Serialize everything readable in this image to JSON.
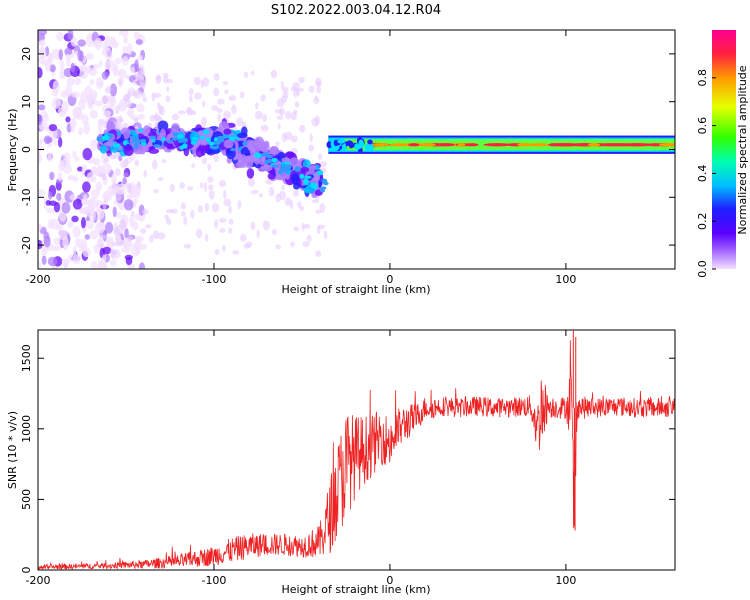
{
  "figure": {
    "title": "S102.2022.003.04.12.R04"
  },
  "chart_data": [
    {
      "type": "heatmap",
      "title": "",
      "xlabel": "Height of straight line (km)",
      "ylabel": "Frequency (Hz)",
      "xlim": [
        -200,
        162
      ],
      "ylim": [
        -25,
        25
      ],
      "x_ticks": [
        "-200",
        "-100",
        "0",
        "100"
      ],
      "y_ticks": [
        "-20",
        "-10",
        "0",
        "10",
        "20"
      ],
      "colorbar": {
        "label": "Normalized spectral amplitude",
        "range": [
          0,
          1
        ],
        "ticks": [
          "0.0",
          "0.2",
          "0.4",
          "0.6",
          "0.8"
        ],
        "colors": [
          "#f3e0ff",
          "#7a00ff",
          "#1e1eff",
          "#00bfff",
          "#00ff9a",
          "#5cff00",
          "#f2ff00",
          "#ff9900",
          "#ff2040",
          "#ff00a0"
        ]
      },
      "description_bands": [
        {
          "x_range": [
            -200,
            -165
          ],
          "freq_spread": [
            -25,
            25
          ],
          "amplitude": [
            0.0,
            0.2
          ]
        },
        {
          "x_range": [
            -165,
            -40
          ],
          "freq_spread": [
            -17,
            10
          ],
          "amplitude": [
            0.1,
            0.35
          ]
        },
        {
          "x_range": [
            -35,
            162
          ],
          "freq_center": 1,
          "freq_halfwidth": 1.5,
          "amplitude": [
            0.6,
            1.0
          ]
        }
      ],
      "grid": false
    },
    {
      "type": "line",
      "title": "",
      "xlabel": "Height of straight line (km)",
      "ylabel": "SNR (10 * v/v)",
      "xlim": [
        -200,
        162
      ],
      "ylim": [
        0,
        1700
      ],
      "x_ticks": [
        "-200",
        "-100",
        "0",
        "100"
      ],
      "y_ticks": [
        "0",
        "500",
        "1000",
        "1500"
      ],
      "color": "#ee2222",
      "grid": false,
      "series": [
        {
          "x": [
            -200,
            -180,
            -160,
            -140,
            -120,
            -100,
            -90,
            -80,
            -70,
            -60,
            -50,
            -40,
            -35,
            -30,
            -25,
            -20,
            -15,
            -10,
            -5,
            0,
            5,
            10,
            15,
            20,
            25,
            30,
            40,
            50,
            60,
            70,
            80,
            84,
            86,
            90,
            95,
            100,
            103,
            104,
            105,
            106,
            107,
            110,
            120,
            130,
            140,
            150,
            160,
            162
          ],
          "y": [
            20,
            25,
            30,
            40,
            60,
            100,
            140,
            170,
            180,
            180,
            170,
            200,
            350,
            550,
            750,
            800,
            850,
            880,
            950,
            900,
            1000,
            1050,
            1080,
            1150,
            1150,
            1160,
            1150,
            1160,
            1150,
            1155,
            1160,
            1000,
            1150,
            1160,
            1150,
            1150,
            1200,
            600,
            280,
            1150,
            1160,
            1150,
            1150,
            1160,
            1150,
            1150,
            1150,
            1150
          ],
          "noise_amplitude": [
            15,
            20,
            20,
            30,
            50,
            70,
            90,
            90,
            80,
            80,
            80,
            120,
            250,
            350,
            400,
            300,
            250,
            220,
            200,
            180,
            150,
            130,
            100,
            80,
            80,
            70,
            70,
            70,
            70,
            70,
            80,
            200,
            300,
            80,
            80,
            80,
            300,
            500,
            400,
            200,
            80,
            80,
            70,
            70,
            70,
            70,
            70,
            70
          ]
        }
      ]
    }
  ]
}
